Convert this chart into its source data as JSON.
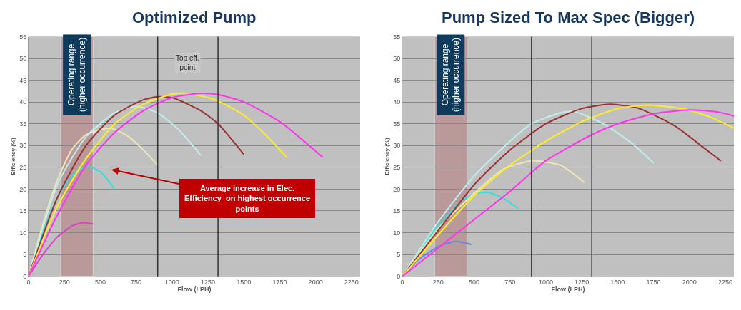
{
  "chart_data": [
    {
      "type": "line",
      "title": "Optimized Pump",
      "xlabel": "Flow (LPH)",
      "ylabel": "Efficiency (%)",
      "xlim": [
        0,
        2310
      ],
      "ylim": [
        0,
        55
      ],
      "xticks": [
        0,
        250,
        500,
        750,
        1000,
        1250,
        1500,
        1750,
        2000,
        2250
      ],
      "yticks": [
        0,
        5,
        10,
        15,
        20,
        25,
        30,
        35,
        40,
        45,
        50,
        55
      ],
      "grid": "y",
      "series": [
        {
          "color": "#e040c8",
          "x": [
            0,
            100,
            200,
            250,
            300,
            380,
            450
          ],
          "values": [
            0,
            5,
            9,
            10.3,
            11.5,
            12.3,
            12
          ]
        },
        {
          "color": "#33dddd",
          "x": [
            0,
            100,
            200,
            300,
            400,
            500,
            600
          ],
          "values": [
            0,
            10,
            18,
            23,
            25.2,
            24,
            20
          ]
        },
        {
          "color": "#eee8b0",
          "x": [
            0,
            100,
            200,
            300,
            400,
            570,
            700,
            800,
            900
          ],
          "values": [
            0,
            12,
            22,
            29,
            32.5,
            34,
            32,
            29,
            25.5
          ]
        },
        {
          "color": "#bfeeee",
          "x": [
            0,
            200,
            400,
            600,
            750,
            900,
            1050,
            1200
          ],
          "values": [
            0,
            21,
            32,
            37.5,
            39,
            37.5,
            33.5,
            27.8
          ]
        },
        {
          "color": "#993333",
          "x": [
            0,
            200,
            400,
            600,
            800,
            900,
            1000,
            1200,
            1320,
            1500
          ],
          "values": [
            0,
            18,
            30,
            37,
            40.5,
            41.2,
            41,
            38,
            35,
            28
          ]
        },
        {
          "color": "#ffee22",
          "x": [
            0,
            200,
            400,
            600,
            800,
            1000,
            1100,
            1300,
            1500,
            1650,
            1800
          ],
          "values": [
            0,
            16,
            27,
            35,
            39.5,
            41.8,
            42,
            40.5,
            37,
            32.5,
            27.3
          ]
        },
        {
          "color": "#ff33ee",
          "x": [
            0,
            200,
            400,
            600,
            800,
            1000,
            1200,
            1320,
            1500,
            1750,
            2050
          ],
          "values": [
            0,
            14,
            25.5,
            33,
            38,
            41,
            42,
            41.7,
            40,
            35.5,
            27.3
          ]
        }
      ],
      "bands": [
        {
          "axis": "x",
          "from": 225,
          "to": 450,
          "label": "Operating range\n(higher occurrence)",
          "color": "#b89090"
        }
      ],
      "ref_lines": [
        {
          "axis": "x",
          "value": 900,
          "color": "#333333"
        },
        {
          "axis": "x",
          "value": 1320,
          "color": "#333333"
        }
      ],
      "annotations": [
        {
          "text": "Top eff.\npoint",
          "x": 1110,
          "y": 49
        },
        "Average increase in Elec.\nEfficiency  on highest occurrence\npoints"
      ]
    },
    {
      "type": "line",
      "title": "Pump Sized To Max Spec (Bigger)",
      "xlabel": "Flow (LPH)",
      "ylabel": "Efficiency (%)",
      "xlim": [
        0,
        2310
      ],
      "ylim": [
        0,
        55
      ],
      "xticks": [
        0,
        250,
        500,
        750,
        1000,
        1250,
        1500,
        1750,
        2000,
        2250
      ],
      "yticks": [
        0,
        5,
        10,
        15,
        20,
        25,
        30,
        35,
        40,
        45,
        50,
        55
      ],
      "grid": "y",
      "series": [
        {
          "color": "#6688dd",
          "x": [
            0,
            100,
            250,
            370,
            480
          ],
          "values": [
            0,
            3.5,
            6.8,
            8,
            7.3
          ]
        },
        {
          "color": "#33dddd",
          "x": [
            0,
            200,
            300,
            400,
            500,
            590,
            700,
            810
          ],
          "values": [
            0,
            9.5,
            13.5,
            17,
            18.8,
            19.3,
            18,
            15.5
          ]
        },
        {
          "color": "#eee8b0",
          "x": [
            0,
            250,
            500,
            700,
            900,
            1100,
            1270
          ],
          "values": [
            0,
            11,
            19,
            24.5,
            26.5,
            25.5,
            21.5
          ]
        },
        {
          "color": "#bfeeee",
          "x": [
            0,
            250,
            500,
            750,
            900,
            1100,
            1200,
            1400,
            1600,
            1750
          ],
          "values": [
            0,
            12.5,
            23,
            31,
            35,
            37.5,
            37.8,
            35,
            30.5,
            26
          ]
        },
        {
          "color": "#993333",
          "x": [
            0,
            250,
            500,
            750,
            1000,
            1250,
            1450,
            1650,
            1900,
            2100,
            2220
          ],
          "values": [
            0,
            10.5,
            21,
            29,
            35,
            38.5,
            39.5,
            38.5,
            34.5,
            29.5,
            26.5
          ]
        },
        {
          "color": "#ffee22",
          "x": [
            0,
            250,
            500,
            750,
            1000,
            1250,
            1500,
            1700,
            1950,
            2150,
            2310
          ],
          "values": [
            0,
            9.5,
            18.5,
            25.5,
            31,
            35.5,
            38.5,
            39.3,
            38.5,
            36.5,
            34
          ]
        },
        {
          "color": "#ff33ee",
          "x": [
            0,
            250,
            500,
            750,
            1000,
            1320,
            1500,
            1750,
            2000,
            2200,
            2310
          ],
          "values": [
            0,
            6.5,
            13,
            19.5,
            26.5,
            32.5,
            35,
            37.3,
            38.2,
            37.7,
            36.8
          ]
        }
      ],
      "bands": [
        {
          "axis": "x",
          "from": 225,
          "to": 450,
          "label": "Operating range\n(higher occurrence)",
          "color": "#b89090"
        }
      ],
      "ref_lines": [
        {
          "axis": "x",
          "value": 900,
          "color": "#333333"
        },
        {
          "axis": "x",
          "value": 1320,
          "color": "#333333"
        }
      ]
    }
  ]
}
